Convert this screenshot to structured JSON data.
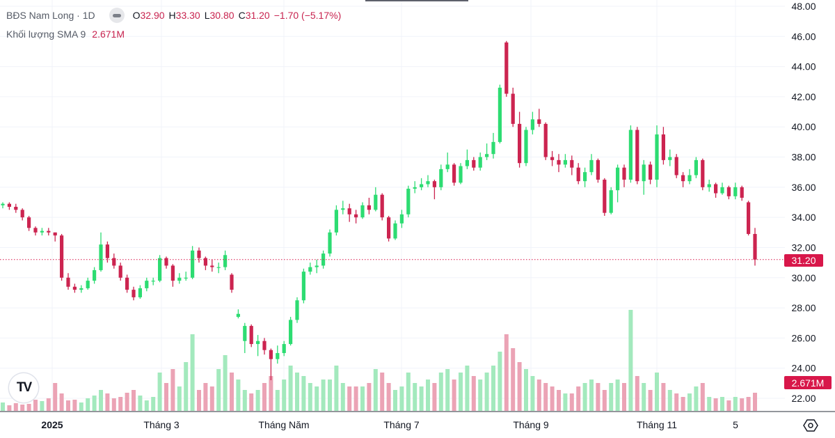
{
  "legend": {
    "symbol": "BĐS Nam Long · 1D",
    "open_label": "O",
    "open": "32.90",
    "high_label": "H",
    "high": "33.30",
    "low_label": "L",
    "low": "30.80",
    "close_label": "C",
    "close": "31.20",
    "change": "−1.70 (−5.17%)",
    "volume_label": "Khối lượng SMA 9",
    "volume_value": "2.671M"
  },
  "colors": {
    "up": "#2ddc72",
    "down": "#cc2450",
    "up_volume": "#a3e9bd",
    "down_volume": "#eba3b5",
    "last_price": "#d8174a",
    "grid": "#f0f3fa"
  },
  "icons": {
    "logo": "tradingview-logo",
    "settings": "hexagon-settings-icon",
    "hide": "minus-icon"
  },
  "logo_text": "TV",
  "chart_data": {
    "type": "candlestick",
    "price_axis": {
      "ticks": [
        "48.00",
        "46.00",
        "44.00",
        "42.00",
        "40.00",
        "38.00",
        "36.00",
        "34.00",
        "32.00",
        "30.00",
        "28.00",
        "26.00",
        "24.00",
        "22.00"
      ],
      "range": [
        22,
        48
      ]
    },
    "time_axis": {
      "ticks": [
        "2025",
        "Tháng 3",
        "Tháng Năm",
        "Tháng 7",
        "Tháng 9",
        "Tháng 11",
        "5"
      ]
    },
    "last_price_label": "31.20",
    "last_price": 31.2,
    "volume_label": "2.671M",
    "grid": true,
    "candles": [
      [
        34.8,
        35.0,
        34.6,
        34.9
      ],
      [
        34.9,
        35.0,
        34.5,
        34.7
      ],
      [
        34.7,
        34.9,
        34.3,
        34.5
      ],
      [
        34.5,
        34.6,
        33.8,
        34.0
      ],
      [
        34.0,
        34.1,
        33.1,
        33.3
      ],
      [
        33.3,
        33.4,
        32.8,
        33.0
      ],
      [
        33.0,
        33.3,
        32.8,
        33.1
      ],
      [
        33.1,
        33.3,
        32.8,
        33.0
      ],
      [
        33.0,
        33.0,
        32.4,
        32.8
      ],
      [
        32.8,
        32.9,
        29.8,
        30.0
      ],
      [
        30.0,
        30.3,
        29.2,
        29.4
      ],
      [
        29.4,
        29.6,
        29.0,
        29.2
      ],
      [
        29.2,
        29.5,
        29.0,
        29.3
      ],
      [
        29.3,
        30.0,
        29.2,
        29.8
      ],
      [
        29.8,
        30.7,
        29.6,
        30.5
      ],
      [
        30.5,
        33.0,
        30.4,
        32.2
      ],
      [
        32.2,
        32.4,
        31.0,
        31.3
      ],
      [
        31.3,
        31.6,
        30.6,
        30.8
      ],
      [
        30.8,
        31.0,
        29.8,
        30.0
      ],
      [
        30.0,
        30.2,
        29.0,
        29.2
      ],
      [
        29.2,
        29.4,
        28.5,
        28.7
      ],
      [
        28.7,
        29.5,
        28.6,
        29.3
      ],
      [
        29.3,
        30.0,
        29.1,
        29.8
      ],
      [
        29.8,
        30.0,
        29.5,
        29.8
      ],
      [
        29.8,
        31.5,
        29.7,
        31.3
      ],
      [
        31.3,
        31.4,
        30.6,
        30.8
      ],
      [
        30.8,
        30.9,
        29.4,
        29.8
      ],
      [
        29.8,
        30.3,
        29.6,
        30.0
      ],
      [
        30.0,
        30.4,
        29.8,
        30.0
      ],
      [
        30.0,
        32.1,
        29.9,
        31.8
      ],
      [
        31.8,
        32.0,
        31.0,
        31.3
      ],
      [
        31.3,
        31.4,
        30.5,
        30.8
      ],
      [
        30.8,
        31.2,
        30.4,
        30.7
      ],
      [
        30.7,
        31.0,
        30.3,
        30.7
      ],
      [
        30.7,
        31.8,
        30.5,
        31.5
      ],
      [
        30.2,
        30.3,
        29.0,
        29.2
      ],
      [
        27.4,
        27.9,
        27.3,
        27.6
      ],
      [
        25.8,
        27.0,
        25.0,
        26.8
      ],
      [
        26.8,
        26.9,
        25.4,
        25.6
      ],
      [
        25.6,
        26.2,
        24.8,
        25.8
      ],
      [
        25.8,
        26.0,
        24.9,
        25.2
      ],
      [
        25.2,
        25.3,
        23.2,
        24.6
      ],
      [
        24.6,
        25.5,
        24.3,
        25.0
      ],
      [
        25.0,
        25.8,
        24.8,
        25.6
      ],
      [
        25.6,
        27.4,
        25.5,
        27.2
      ],
      [
        27.2,
        28.7,
        27.0,
        28.5
      ],
      [
        28.5,
        30.6,
        28.3,
        30.4
      ],
      [
        30.4,
        31.0,
        30.2,
        30.7
      ],
      [
        30.7,
        31.2,
        30.3,
        30.8
      ],
      [
        30.8,
        31.8,
        30.6,
        31.6
      ],
      [
        31.6,
        33.2,
        31.4,
        33.0
      ],
      [
        33.0,
        34.8,
        32.8,
        34.5
      ],
      [
        34.5,
        35.1,
        34.2,
        34.6
      ],
      [
        34.6,
        34.9,
        33.7,
        34.2
      ],
      [
        34.2,
        34.5,
        33.6,
        34.0
      ],
      [
        34.0,
        35.0,
        33.9,
        34.8
      ],
      [
        34.8,
        35.3,
        34.2,
        34.5
      ],
      [
        34.5,
        36.0,
        34.4,
        35.5
      ],
      [
        35.5,
        35.6,
        33.8,
        34.0
      ],
      [
        34.0,
        34.1,
        32.4,
        32.6
      ],
      [
        32.6,
        33.8,
        32.5,
        33.6
      ],
      [
        33.6,
        34.5,
        33.3,
        34.2
      ],
      [
        34.2,
        36.1,
        34.0,
        35.9
      ],
      [
        35.9,
        36.4,
        35.6,
        36.0
      ],
      [
        36.0,
        36.6,
        35.8,
        36.2
      ],
      [
        36.2,
        36.8,
        36.0,
        36.4
      ],
      [
        36.4,
        36.5,
        35.2,
        36.0
      ],
      [
        36.0,
        37.5,
        35.8,
        37.2
      ],
      [
        37.2,
        38.3,
        37.0,
        37.5
      ],
      [
        37.5,
        37.6,
        36.1,
        36.3
      ],
      [
        36.3,
        37.6,
        36.2,
        37.4
      ],
      [
        37.4,
        38.5,
        37.2,
        37.8
      ],
      [
        37.8,
        38.0,
        37.1,
        37.3
      ],
      [
        37.3,
        38.3,
        37.1,
        38.0
      ],
      [
        38.0,
        38.9,
        37.8,
        38.2
      ],
      [
        38.2,
        39.6,
        37.9,
        39.0
      ],
      [
        39.0,
        42.8,
        38.9,
        42.6
      ],
      [
        45.6,
        45.7,
        42.0,
        42.2
      ],
      [
        42.2,
        42.6,
        40.0,
        40.2
      ],
      [
        40.2,
        41.0,
        37.3,
        37.6
      ],
      [
        37.6,
        40.0,
        37.4,
        39.8
      ],
      [
        39.8,
        41.0,
        39.5,
        40.5
      ],
      [
        40.5,
        41.2,
        40.0,
        40.2
      ],
      [
        40.2,
        40.3,
        37.8,
        38.0
      ],
      [
        38.0,
        38.4,
        37.4,
        37.8
      ],
      [
        37.8,
        38.2,
        37.0,
        37.5
      ],
      [
        37.5,
        38.2,
        37.3,
        37.8
      ],
      [
        37.8,
        38.1,
        36.8,
        37.3
      ],
      [
        37.3,
        37.6,
        36.2,
        36.4
      ],
      [
        36.4,
        37.3,
        36.0,
        37.0
      ],
      [
        37.0,
        38.2,
        36.8,
        37.8
      ],
      [
        37.8,
        37.9,
        36.3,
        36.5
      ],
      [
        36.5,
        36.6,
        34.1,
        34.3
      ],
      [
        34.3,
        36.0,
        34.2,
        35.8
      ],
      [
        35.8,
        37.5,
        35.0,
        37.3
      ],
      [
        37.3,
        37.5,
        36.0,
        36.5
      ],
      [
        36.5,
        40.1,
        36.3,
        39.8
      ],
      [
        39.8,
        40.0,
        36.2,
        36.4
      ],
      [
        36.4,
        37.8,
        35.5,
        37.5
      ],
      [
        37.5,
        37.7,
        36.2,
        36.5
      ],
      [
        36.5,
        40.1,
        36.0,
        39.5
      ],
      [
        39.5,
        40.0,
        37.5,
        37.8
      ],
      [
        37.8,
        38.5,
        37.4,
        38.0
      ],
      [
        38.0,
        38.2,
        36.6,
        36.8
      ],
      [
        36.8,
        37.0,
        36.0,
        36.4
      ],
      [
        36.4,
        37.2,
        36.2,
        36.8
      ],
      [
        36.8,
        38.0,
        36.6,
        37.8
      ],
      [
        37.8,
        37.9,
        35.8,
        36.0
      ],
      [
        36.0,
        36.5,
        35.7,
        36.2
      ],
      [
        36.2,
        36.3,
        35.3,
        35.6
      ],
      [
        35.6,
        36.3,
        35.5,
        36.0
      ],
      [
        36.0,
        36.1,
        35.2,
        35.4
      ],
      [
        35.4,
        36.3,
        35.2,
        36.0
      ],
      [
        36.0,
        36.1,
        35.1,
        35.3
      ],
      [
        35.0,
        35.1,
        32.8,
        32.9
      ],
      [
        32.9,
        33.3,
        30.8,
        31.2
      ]
    ],
    "volume_millions": [
      1.2,
      0.8,
      1.1,
      0.9,
      1.0,
      1.6,
      1.4,
      1.8,
      4.0,
      2.5,
      1.5,
      1.6,
      1.2,
      1.8,
      2.2,
      3.0,
      2.5,
      1.8,
      2.0,
      2.6,
      3.0,
      2.2,
      1.5,
      2.0,
      5.5,
      4.0,
      6.0,
      3.5,
      7.0,
      11.0,
      3.0,
      4.0,
      3.5,
      6.0,
      8.0,
      5.5,
      4.5,
      3.0,
      2.5,
      3.0,
      4.0,
      5.0,
      3.0,
      4.5,
      6.5,
      5.5,
      5.0,
      4.0,
      3.5,
      4.5,
      4.5,
      6.5,
      4.0,
      3.5,
      3.5,
      3.5,
      4.0,
      6.0,
      5.5,
      4.0,
      3.0,
      3.5,
      5.5,
      4.0,
      3.5,
      4.5,
      4.0,
      5.5,
      6.0,
      4.5,
      5.5,
      6.5,
      5.0,
      4.5,
      5.5,
      6.5,
      8.5,
      11.0,
      9.0,
      7.0,
      6.0,
      5.0,
      4.5,
      4.0,
      3.5,
      3.0,
      2.5,
      2.5,
      3.5,
      4.0,
      4.5,
      4.0,
      3.0,
      4.0,
      4.5,
      4.0,
      14.5,
      5.0,
      4.0,
      3.0,
      5.5,
      4.0,
      3.0,
      2.5,
      2.0,
      2.5,
      3.5,
      4.0,
      2.0,
      1.8,
      2.0,
      1.5,
      2.0,
      1.8,
      2.0,
      2.6
    ]
  }
}
